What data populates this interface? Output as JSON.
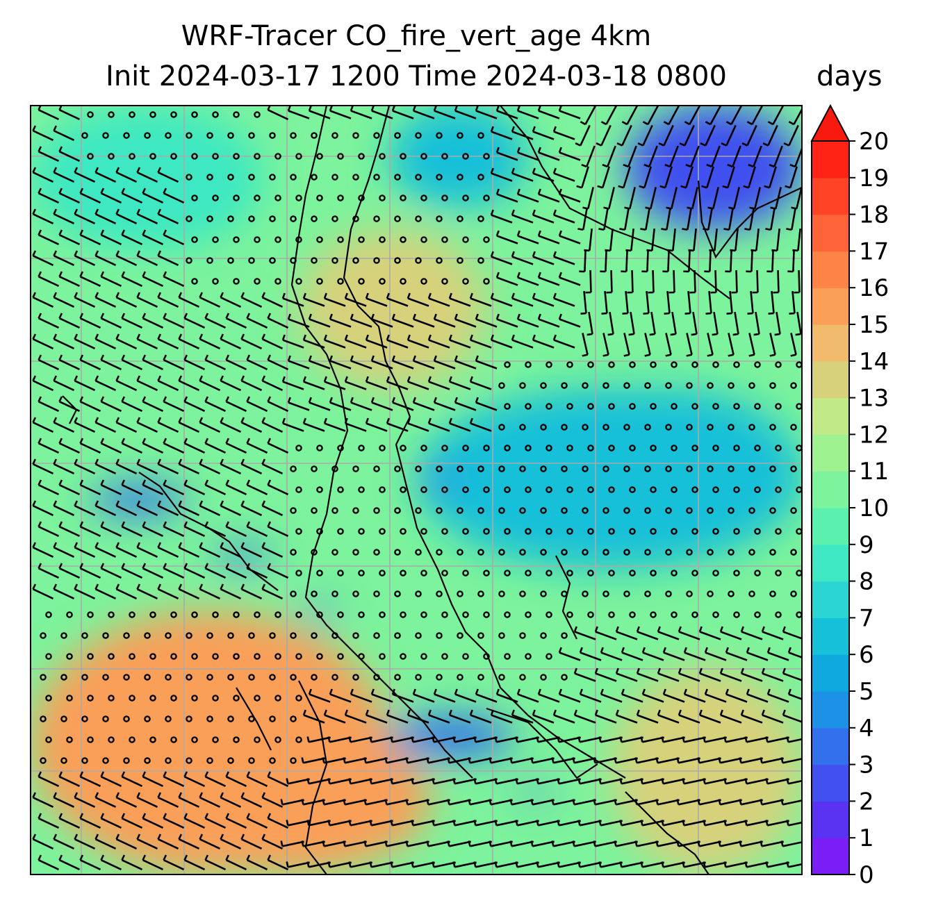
{
  "title": {
    "line1": "WRF-Tracer CO_fire_vert_age 4km",
    "line2": "Init 2024-03-17 1200 Time 2024-03-18 0800"
  },
  "colorbar": {
    "units": "days",
    "min": 0,
    "max": 20,
    "extend": "max",
    "ticks": [
      "0",
      "1",
      "2",
      "3",
      "4",
      "5",
      "6",
      "7",
      "8",
      "9",
      "10",
      "11",
      "12",
      "13",
      "14",
      "15",
      "16",
      "17",
      "18",
      "19",
      "20"
    ],
    "colors": [
      "#7a1ef5",
      "#5a32f2",
      "#4150ef",
      "#3370ec",
      "#1c91e6",
      "#0fa9de",
      "#16c0d8",
      "#2bd6d2",
      "#3ee8c2",
      "#5cf0ae",
      "#7cf39c",
      "#9ef28f",
      "#c1ea86",
      "#d7d17c",
      "#f0bb6c",
      "#fa9f58",
      "#fd8347",
      "#fe6438",
      "#fe4326",
      "#fe2315"
    ],
    "extend_color": "#f81a0f"
  },
  "map": {
    "field": "CO_fire_vert_age",
    "background_color": "#7cf39c",
    "gridline_color": "#aaaaaa",
    "regions": [
      {
        "name": "northwest",
        "value": 8.5
      },
      {
        "name": "north-central",
        "value": 6.5
      },
      {
        "name": "northeast",
        "value": 2.5
      },
      {
        "name": "central-north",
        "value": 13.5
      },
      {
        "name": "central-east",
        "value": 6
      },
      {
        "name": "southwest",
        "value": 15.5
      },
      {
        "name": "southeast",
        "value": 13
      }
    ],
    "wind_barbs": "shown",
    "coastlines": "shown"
  }
}
